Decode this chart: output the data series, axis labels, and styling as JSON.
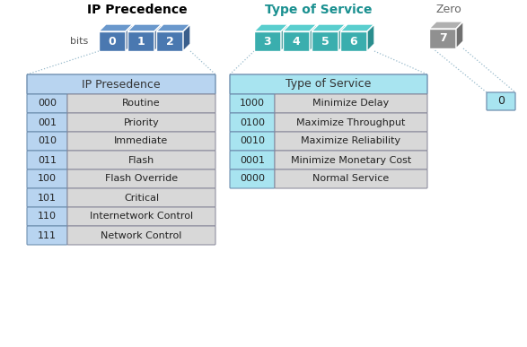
{
  "title_ip": "IP Precedence",
  "title_tos": "Type of Service",
  "title_zero": "Zero",
  "bits_label": "bits",
  "ip_bits": [
    "0",
    "1",
    "2"
  ],
  "tos_bits": [
    "3",
    "4",
    "5",
    "6"
  ],
  "zero_bit": "7",
  "zero_value": "0",
  "ip_header": "IP Presedence",
  "tos_header": "Type of Service",
  "ip_rows": [
    [
      "000",
      "Routine"
    ],
    [
      "001",
      "Priority"
    ],
    [
      "010",
      "Immediate"
    ],
    [
      "011",
      "Flash"
    ],
    [
      "100",
      "Flash Override"
    ],
    [
      "101",
      "Critical"
    ],
    [
      "110",
      "Internetwork Control"
    ],
    [
      "111",
      "Network Control"
    ]
  ],
  "tos_rows": [
    [
      "1000",
      "Minimize Delay"
    ],
    [
      "0100",
      "Maximize Throughput"
    ],
    [
      "0010",
      "Maximize Reliability"
    ],
    [
      "0001",
      "Minimize Monetary Cost"
    ],
    [
      "0000",
      "Normal Service"
    ]
  ],
  "color_ip_cube_front": "#4a78b0",
  "color_ip_cube_top": "#6a98cc",
  "color_ip_cube_side": "#3a5e8c",
  "color_tos_cube_front": "#3aaeae",
  "color_tos_cube_top": "#5acece",
  "color_tos_cube_side": "#2a8e8e",
  "color_zero_cube_front": "#909090",
  "color_zero_cube_top": "#b0b0b0",
  "color_zero_cube_side": "#707070",
  "color_ip_header_bg": "#b8d4f0",
  "color_tos_header_bg": "#a8e4f0",
  "color_cell_left_ip_bg": "#b8d4f0",
  "color_cell_left_tos_bg": "#a8e4f0",
  "color_cell_right_bg": "#d8d8d8",
  "color_zero_small_bg": "#a8e4f0",
  "color_title_ip": "#000000",
  "color_title_tos": "#1a9090",
  "color_title_zero": "#666666",
  "bg_color": "#ffffff"
}
